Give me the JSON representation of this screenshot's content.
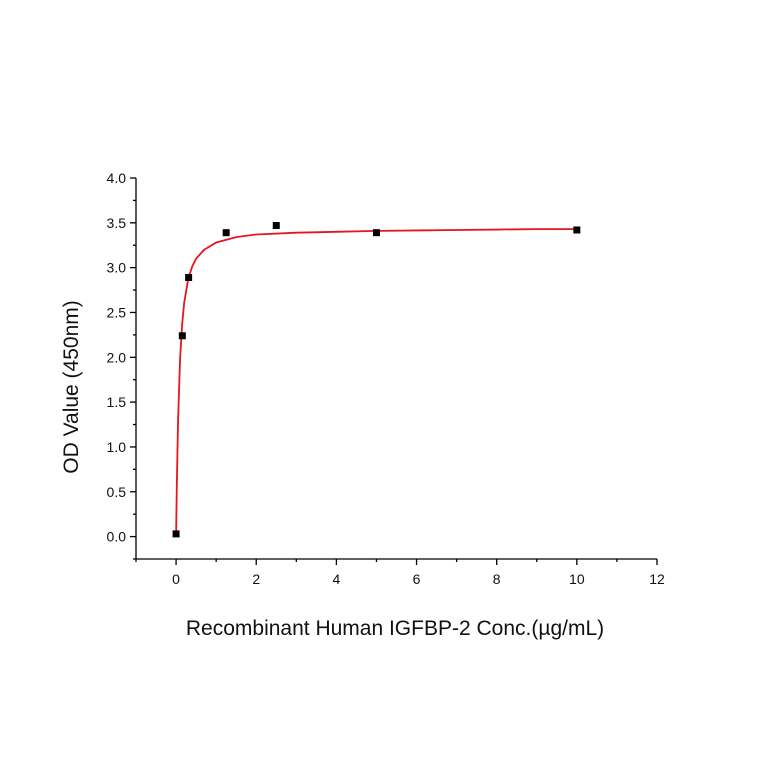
{
  "chart_data": {
    "type": "scatter",
    "xlabel": "Recombinant Human IGFBP-2 Conc.(µg/mL)",
    "ylabel": "OD Value (450nm)",
    "xlim": [
      -1,
      12
    ],
    "ylim": [
      -0.25,
      4.0
    ],
    "x_ticks": [
      0,
      2,
      4,
      6,
      8,
      10,
      12
    ],
    "y_ticks": [
      0.0,
      0.5,
      1.0,
      1.5,
      2.0,
      2.5,
      3.0,
      3.5,
      4.0
    ],
    "x_tick_labels": [
      "0",
      "2",
      "4",
      "6",
      "8",
      "10",
      "12"
    ],
    "y_tick_labels": [
      "0.0",
      "0.5",
      "1.0",
      "1.5",
      "2.0",
      "2.5",
      "3.0",
      "3.5",
      "4.0"
    ],
    "grid": false,
    "series": [
      {
        "kind": "points",
        "marker": "square",
        "color": "#000000",
        "x": [
          0,
          0.156,
          0.313,
          1.25,
          2.5,
          5,
          10
        ],
        "y": [
          0.03,
          2.24,
          2.89,
          3.39,
          3.47,
          3.39,
          3.42
        ]
      },
      {
        "kind": "fit-curve",
        "color": "#e8151b",
        "x": [
          0,
          0.02,
          0.05,
          0.1,
          0.15,
          0.2,
          0.3,
          0.4,
          0.5,
          0.7,
          1.0,
          1.5,
          2,
          3,
          4,
          5,
          6,
          7,
          8,
          9,
          10
        ],
        "y": [
          0.0,
          0.62,
          1.3,
          1.98,
          2.36,
          2.6,
          2.87,
          3.01,
          3.1,
          3.2,
          3.28,
          3.34,
          3.37,
          3.39,
          3.4,
          3.41,
          3.415,
          3.42,
          3.425,
          3.43,
          3.43
        ]
      }
    ]
  }
}
